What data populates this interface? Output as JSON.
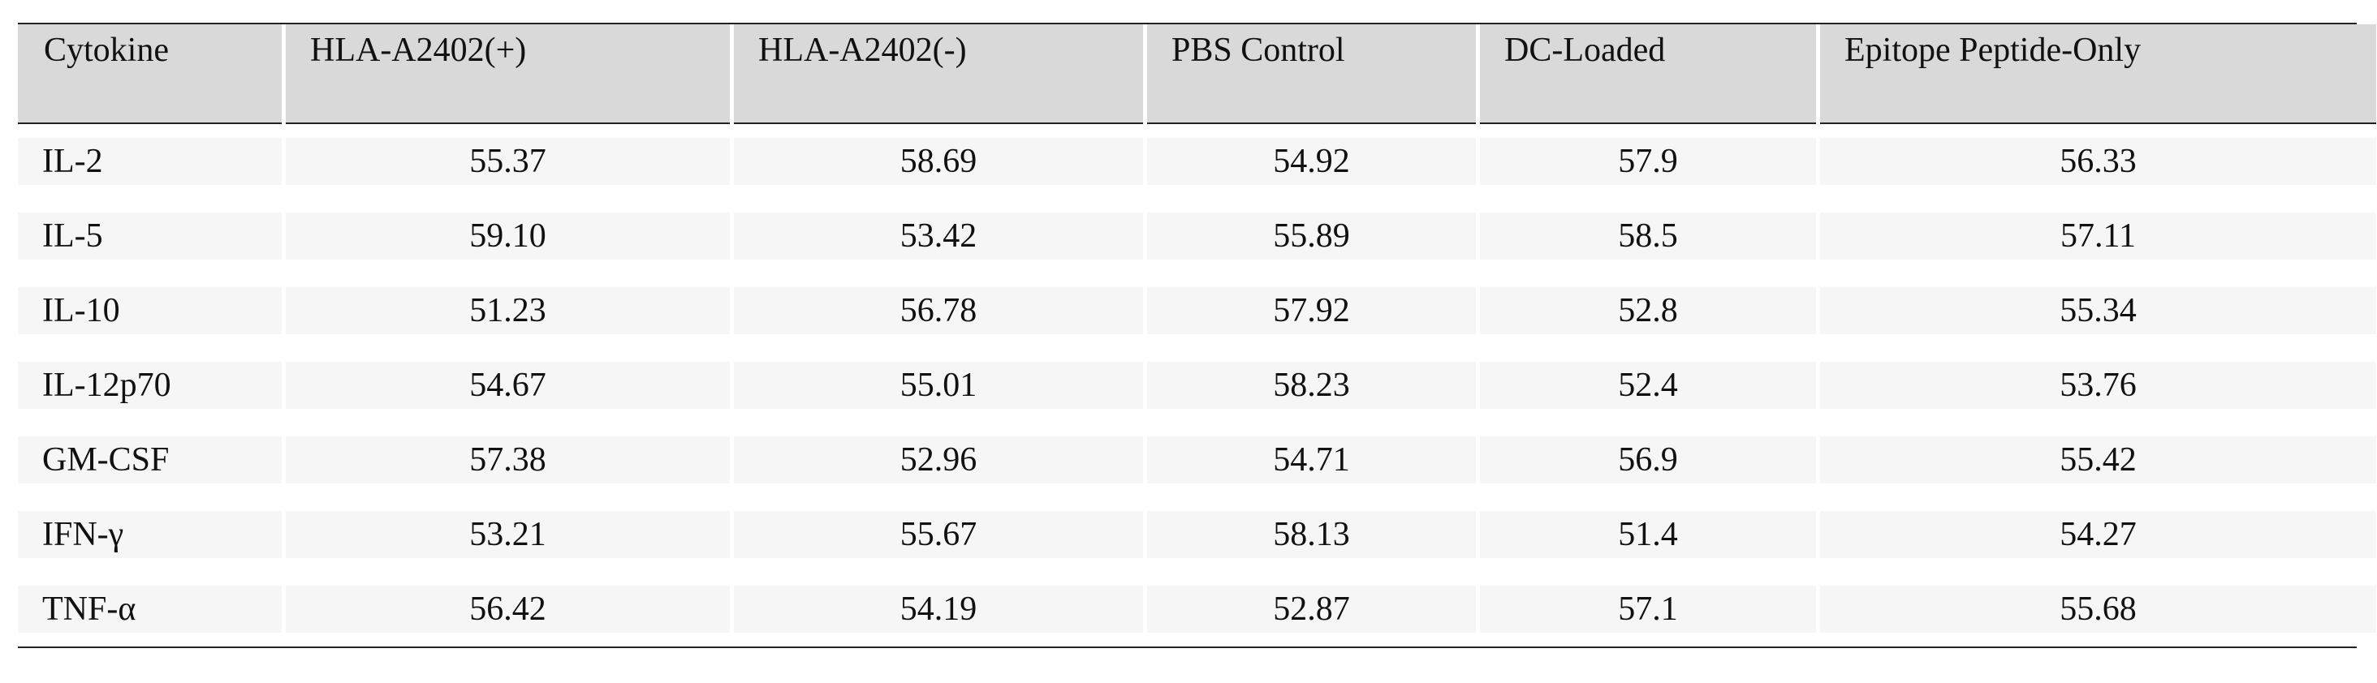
{
  "table": {
    "columns": [
      "Cytokine",
      "HLA-A2402(+)",
      "HLA-A2402(-)",
      "PBS Control",
      "DC-Loaded",
      "Epitope Peptide-Only"
    ],
    "rows": [
      [
        "IL-2",
        "55.37",
        "58.69",
        "54.92",
        "57.9",
        "56.33"
      ],
      [
        "IL-5",
        "59.10",
        "53.42",
        "55.89",
        "58.5",
        "57.11"
      ],
      [
        "IL-10",
        "51.23",
        "56.78",
        "57.92",
        "52.8",
        "55.34"
      ],
      [
        "IL-12p70",
        "54.67",
        "55.01",
        "58.23",
        "52.4",
        "53.76"
      ],
      [
        "GM-CSF",
        "57.38",
        "52.96",
        "54.71",
        "56.9",
        "55.42"
      ],
      [
        "IFN-γ",
        "53.21",
        "55.67",
        "58.13",
        "51.4",
        "54.27"
      ],
      [
        "TNF-α",
        "56.42",
        "54.19",
        "52.87",
        "57.1",
        "55.68"
      ]
    ]
  }
}
